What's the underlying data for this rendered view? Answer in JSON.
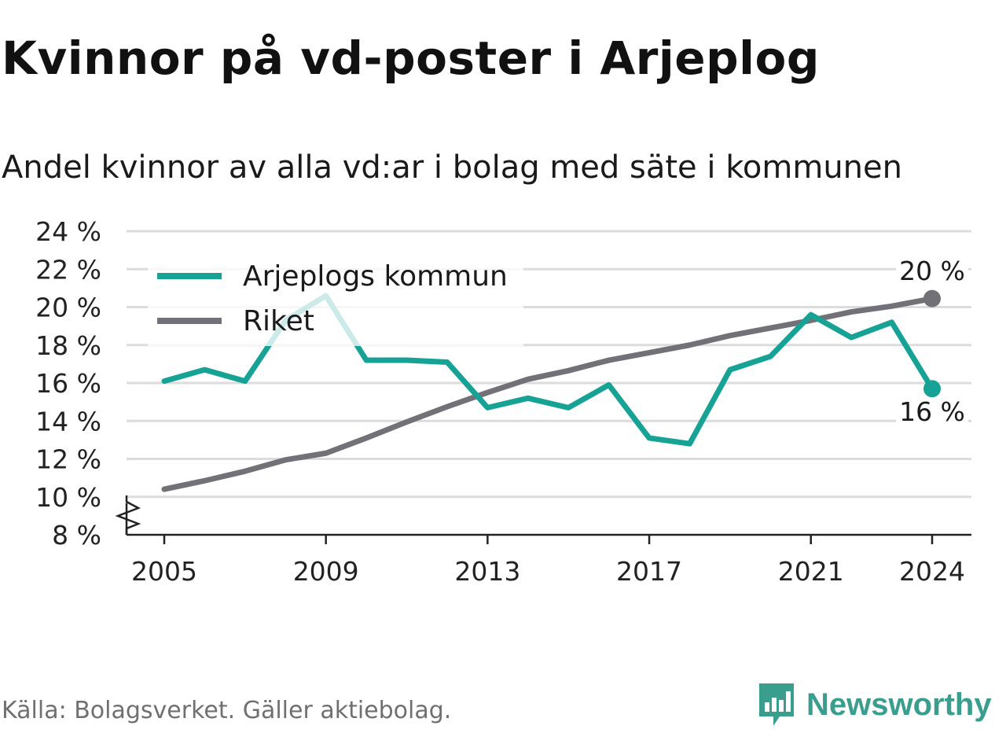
{
  "title": "Kvinnor på vd-poster i Arjeplog",
  "subtitle": "Andel kvinnor av alla vd:ar i bolag med säte i kommunen",
  "source": "Källa: Bolagsverket. Gäller aktiebolag.",
  "brand": "Newsworthy",
  "chart_data": {
    "type": "line",
    "x": [
      2005,
      2006,
      2007,
      2008,
      2009,
      2010,
      2011,
      2012,
      2013,
      2014,
      2015,
      2016,
      2017,
      2018,
      2019,
      2020,
      2021,
      2022,
      2023,
      2024
    ],
    "series": [
      {
        "name": "Arjeplogs kommun",
        "color": "#17a296",
        "values": [
          16.1,
          16.7,
          16.1,
          19.3,
          20.6,
          17.2,
          17.2,
          17.1,
          14.7,
          15.2,
          14.7,
          15.9,
          13.1,
          12.8,
          16.7,
          17.4,
          19.6,
          18.4,
          19.2,
          15.7
        ]
      },
      {
        "name": "Riket",
        "color": "#727178",
        "values": [
          10.4,
          10.85,
          11.35,
          11.95,
          12.3,
          13.1,
          13.95,
          14.75,
          15.5,
          16.2,
          16.65,
          17.2,
          17.6,
          18.0,
          18.5,
          18.9,
          19.3,
          19.75,
          20.05,
          20.45
        ]
      }
    ],
    "end_labels": [
      "20 %",
      "16 %"
    ],
    "yticks": [
      "8 %",
      "10 %",
      "12 %",
      "14 %",
      "16 %",
      "18 %",
      "20 %",
      "22 %",
      "24 %"
    ],
    "ytick_values": [
      8,
      10,
      12,
      14,
      16,
      18,
      20,
      22,
      24
    ],
    "xticks": [
      "2005",
      "2009",
      "2013",
      "2017",
      "2021",
      "2024"
    ],
    "xtick_values": [
      2005,
      2009,
      2013,
      2017,
      2021,
      2024
    ],
    "ylim": [
      8,
      24
    ],
    "xlim": [
      2005,
      2024
    ],
    "y_axis_break": true,
    "grid": true,
    "legend_position": "top-left"
  }
}
